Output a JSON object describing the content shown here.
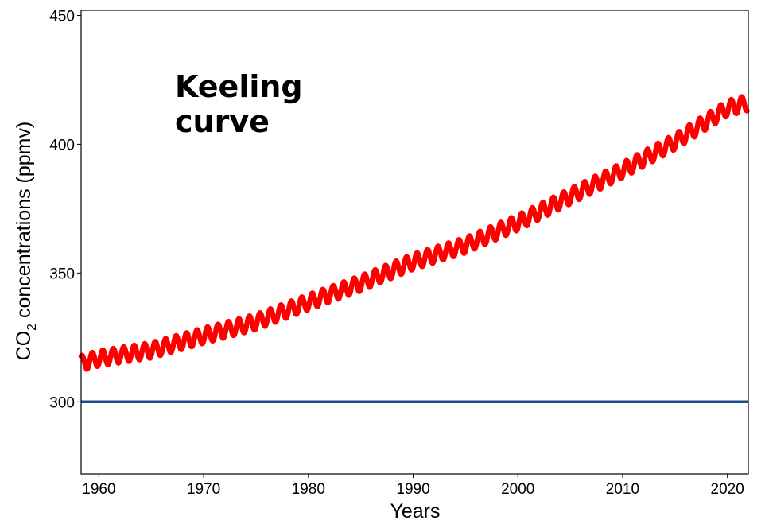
{
  "chart_data": {
    "type": "line",
    "title": "",
    "xlabel": "Years",
    "ylabel_main": "CO",
    "ylabel_sub": "2",
    "ylabel_rest": " concentrations (ppmv)",
    "xlim": [
      1958.3,
      2022
    ],
    "ylim": [
      272,
      452
    ],
    "x_ticks": [
      1960,
      1970,
      1980,
      1990,
      2000,
      2010,
      2020
    ],
    "x_tick_labels": [
      "1960",
      "1970",
      "1980",
      "1990",
      "2000",
      "2010",
      "2020"
    ],
    "y_ticks": [
      300,
      350,
      400,
      450
    ],
    "y_tick_labels": [
      "300",
      "350",
      "400",
      "450"
    ],
    "annotation_lines": [
      "Keeling",
      "curve"
    ],
    "grid": false,
    "series": [
      {
        "color": "#ff0000",
        "seasonal_amplitude_ppmv": 3,
        "x": [
          1958.3,
          1960,
          1965,
          1970,
          1975,
          1980,
          1985,
          1990,
          1995,
          2000,
          2005,
          2010,
          2015,
          2020,
          2021.9
        ],
        "values": [
          315,
          316.9,
          320,
          325.7,
          331,
          338.7,
          346,
          354.4,
          360.8,
          369.6,
          379.8,
          389.9,
          401,
          414,
          416
        ]
      },
      {
        "color": "#1f4e8c",
        "x": [
          1958.3,
          2022
        ],
        "values": [
          300,
          300
        ]
      }
    ]
  }
}
